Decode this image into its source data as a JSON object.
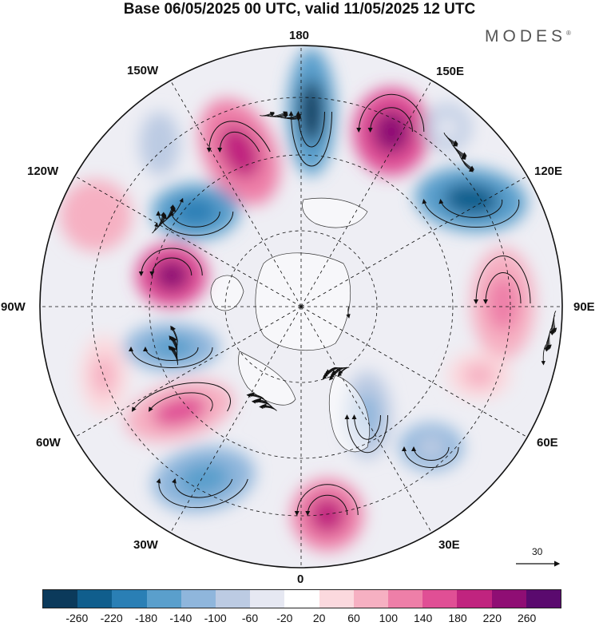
{
  "header": {
    "title": "Base 06/05/2025 00 UTC, valid 11/05/2025 12 UTC",
    "brand": "MODES",
    "brand_mark": "®"
  },
  "map": {
    "projection": "north-polar-stereographic",
    "field": "geopotential height anomaly with wind vectors",
    "longitude_labels": {
      "lon_180": "180",
      "lon_150W": "150W",
      "lon_150E": "150E",
      "lon_120W": "120W",
      "lon_120E": "120E",
      "lon_90W": "90W",
      "lon_90E": "90E",
      "lon_60W": "60W",
      "lon_60E": "60E",
      "lon_30W": "30W",
      "lon_30E": "30E",
      "lon_0": "0"
    },
    "reference_vector": "30"
  },
  "colorbar": {
    "colors": [
      "#0b3a5b",
      "#105e8d",
      "#2a7fb5",
      "#5a9fcc",
      "#8fb6dc",
      "#bccbe3",
      "#e6e8f2",
      "#ffffff",
      "#fbd9de",
      "#f6b0c2",
      "#ee7fa8",
      "#e04f95",
      "#c0247f",
      "#8f0e74",
      "#5a0a6e"
    ],
    "ticks": [
      "-260",
      "-220",
      "-180",
      "-140",
      "-100",
      "-60",
      "-20",
      "20",
      "60",
      "100",
      "140",
      "180",
      "220",
      "260"
    ]
  }
}
